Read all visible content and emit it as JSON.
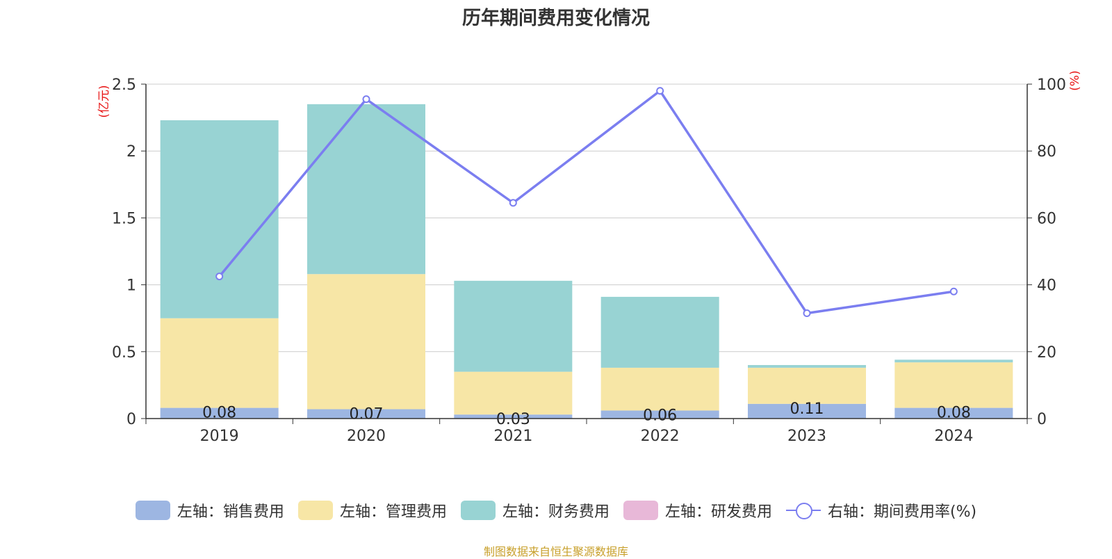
{
  "title": "历年期间费用变化情况",
  "source": "制图数据来自恒生聚源数据库",
  "colors": {
    "sales": "#9db6e2",
    "admin": "#f7e6a6",
    "finance": "#98d3d3",
    "rd": "#e8b8d8",
    "rate": "#7b7ef0",
    "axis_label": "#e81414",
    "grid": "#cccccc"
  },
  "chart_data": {
    "type": "bar",
    "stacked": true,
    "categories": [
      "2019",
      "2020",
      "2021",
      "2022",
      "2023",
      "2024"
    ],
    "left_axis": {
      "label": "(亿元)",
      "range": [
        0,
        2.5
      ],
      "ticks": [
        "0",
        "0.5",
        "1",
        "1.5",
        "2",
        "2.5"
      ]
    },
    "right_axis": {
      "label": "(%)",
      "range": [
        0,
        100
      ],
      "ticks": [
        "0",
        "20",
        "40",
        "60",
        "80",
        "100"
      ]
    },
    "series": [
      {
        "name": "左轴：销售费用",
        "key": "sales",
        "axis": "left",
        "type": "bar",
        "values": [
          0.08,
          0.07,
          0.03,
          0.06,
          0.11,
          0.08
        ],
        "labels": [
          "0.08",
          "0.07",
          "0.03",
          "0.06",
          "0.11",
          "0.08"
        ]
      },
      {
        "name": "左轴：管理费用",
        "key": "admin",
        "axis": "left",
        "type": "bar",
        "values": [
          0.67,
          1.01,
          0.32,
          0.32,
          0.27,
          0.34
        ]
      },
      {
        "name": "左轴：财务费用",
        "key": "finance",
        "axis": "left",
        "type": "bar",
        "values": [
          1.48,
          1.27,
          0.68,
          0.53,
          0.02,
          0.02
        ]
      },
      {
        "name": "左轴：研发费用",
        "key": "rd",
        "axis": "left",
        "type": "bar",
        "values": [
          0,
          0,
          0,
          0,
          0,
          0
        ]
      },
      {
        "name": "右轴：期间费用率(%)",
        "key": "rate",
        "axis": "right",
        "type": "line",
        "values": [
          42.5,
          95.5,
          64.5,
          98,
          31.5,
          38
        ]
      }
    ],
    "grid": true,
    "legend_position": "bottom"
  }
}
